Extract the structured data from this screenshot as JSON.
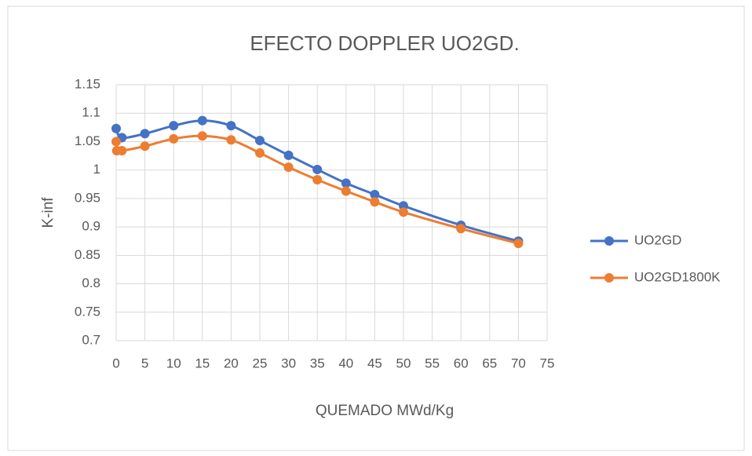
{
  "chart_data": {
    "type": "line",
    "title": "EFECTO DOPPLER UO2GD.",
    "x_label": "QUEMADO MWd/Kg",
    "y_label": "K-inf",
    "smooth": true,
    "grid": true,
    "legend": "right",
    "series": [
      {
        "name": "UO2GD",
        "color": "#4472c4",
        "x": [
          0,
          1,
          5,
          10,
          15,
          20,
          25,
          30,
          35,
          40,
          45,
          50,
          60,
          70
        ],
        "values": [
          1.073,
          1.057,
          1.064,
          1.078,
          1.087,
          1.078,
          1.052,
          1.026,
          1.001,
          0.977,
          0.957,
          0.937,
          0.903,
          0.875
        ]
      },
      {
        "name": "UO2GD1800K",
        "color": "#ed7d31",
        "x": [
          0,
          0.1,
          1,
          5,
          10,
          15,
          20,
          25,
          30,
          35,
          40,
          45,
          50,
          60,
          70
        ],
        "values": [
          1.05,
          1.034,
          1.034,
          1.042,
          1.055,
          1.06,
          1.053,
          1.03,
          1.005,
          0.983,
          0.963,
          0.944,
          0.926,
          0.897,
          0.871
        ]
      }
    ],
    "xlim": [
      0,
      75
    ],
    "xticks": [
      0,
      5,
      10,
      15,
      20,
      25,
      30,
      35,
      40,
      45,
      50,
      55,
      60,
      65,
      70,
      75
    ],
    "ylim": [
      0.7,
      1.15
    ],
    "yticks": [
      0.7,
      0.75,
      0.8,
      0.85,
      0.9,
      0.95,
      1,
      1.05,
      1.1,
      1.15
    ]
  }
}
